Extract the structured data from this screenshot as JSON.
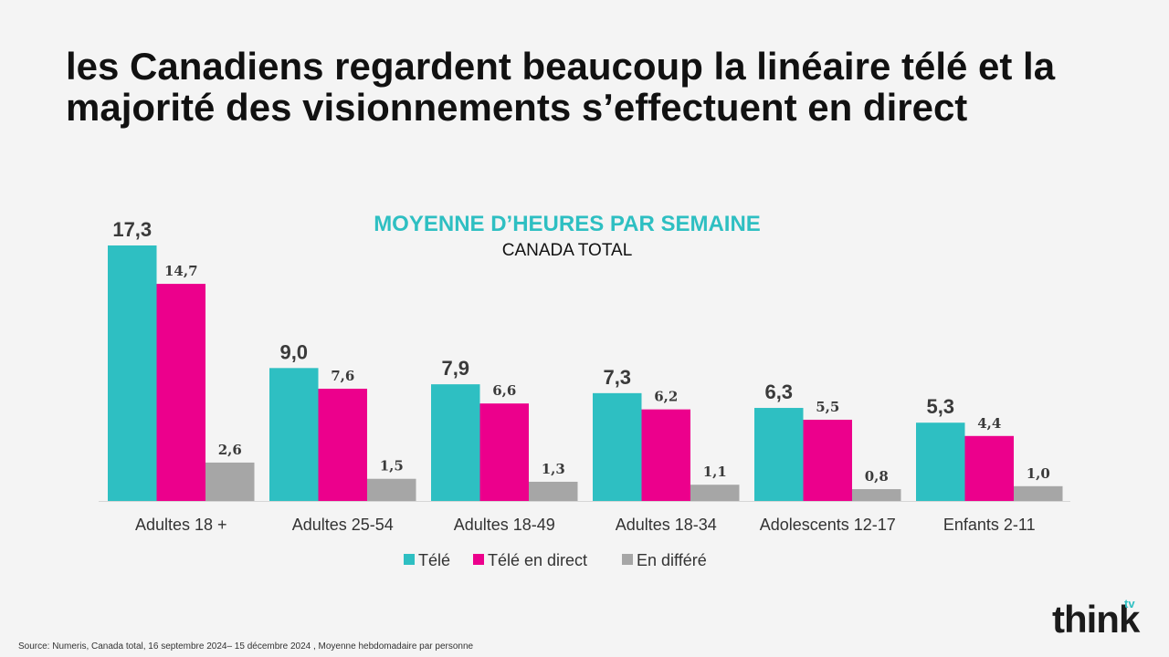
{
  "headline": "les Canadiens regardent beaucoup la linéaire télé et la majorité des visionnements s’effectuent en direct",
  "source": "Source: Numeris, Canada total, 16 septembre 2024– 15 décembre 2024 , Moyenne hebdomadaire par personne",
  "logo": {
    "text": "think",
    "superscript": "tv"
  },
  "colors": {
    "tele": "#2ebfc2",
    "direct": "#ec008c",
    "differe": "#a6a6a6",
    "title": "#2ebfc2"
  },
  "chart_data": {
    "type": "bar",
    "title": "MOYENNE D’HEURES PAR SEMAINE",
    "subtitle": "CANADA TOTAL",
    "categories": [
      "Adultes 18 +",
      "Adultes 25-54",
      "Adultes 18-49",
      "Adultes 18-34",
      "Adolescents 12-17",
      "Enfants 2-11"
    ],
    "series": [
      {
        "name": "Télé",
        "color": "#2ebfc2",
        "values": [
          17.3,
          9.0,
          7.9,
          7.3,
          6.3,
          5.3
        ],
        "labels": [
          "17,3",
          "9,0",
          "7,9",
          "7,3",
          "6,3",
          "5,3"
        ]
      },
      {
        "name": "Télé en direct",
        "color": "#ec008c",
        "values": [
          14.7,
          7.6,
          6.6,
          6.2,
          5.5,
          4.4
        ],
        "labels": [
          "14,7",
          "7,6",
          "6,6",
          "6,2",
          "5,5",
          "4,4"
        ]
      },
      {
        "name": "En différé",
        "color": "#a6a6a6",
        "values": [
          2.6,
          1.5,
          1.3,
          1.1,
          0.8,
          1.0
        ],
        "labels": [
          "2,6",
          "1,5",
          "1,3",
          "1,1",
          "0,8",
          "1,0"
        ]
      }
    ],
    "ylim": [
      0,
      17.3
    ],
    "legend": "bottom",
    "grid": false
  }
}
